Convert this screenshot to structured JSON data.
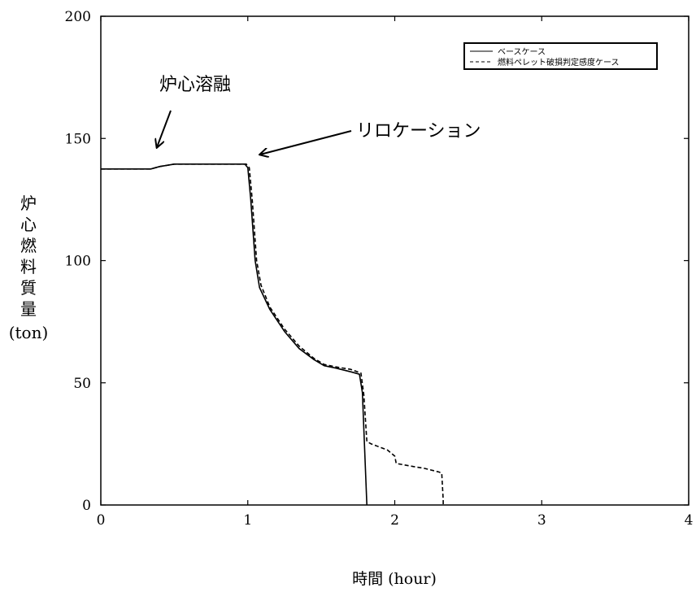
{
  "chart_data": {
    "type": "line",
    "title": "",
    "xlabel": "時間 (hour)",
    "ylabel": "炉心燃料質量",
    "ylabel_unit": "(ton)",
    "xlim": [
      0,
      4
    ],
    "ylim": [
      0,
      200
    ],
    "x_ticks": [
      0,
      1,
      2,
      3,
      4
    ],
    "y_ticks": [
      0,
      50,
      100,
      150,
      200
    ],
    "grid": false,
    "legend_position": "top-right",
    "series": [
      {
        "name": "ベースケース",
        "style": "solid",
        "color": "#000000",
        "points": [
          [
            0,
            137.5
          ],
          [
            0.34,
            137.5
          ],
          [
            0.4,
            138.5
          ],
          [
            0.5,
            139.5
          ],
          [
            0.98,
            139.5
          ],
          [
            1.0,
            138
          ],
          [
            1.02,
            125
          ],
          [
            1.05,
            100
          ],
          [
            1.08,
            89
          ],
          [
            1.15,
            80
          ],
          [
            1.25,
            71
          ],
          [
            1.35,
            64
          ],
          [
            1.45,
            59.5
          ],
          [
            1.52,
            57
          ],
          [
            1.6,
            56
          ],
          [
            1.7,
            54.5
          ],
          [
            1.76,
            53.5
          ],
          [
            1.78,
            46
          ],
          [
            1.8,
            15
          ],
          [
            1.81,
            0
          ]
        ]
      },
      {
        "name": "燃料ペレット破損判定感度ケース",
        "style": "dashed",
        "color": "#000000",
        "points": [
          [
            0,
            137.5
          ],
          [
            0.34,
            137.5
          ],
          [
            0.4,
            138.5
          ],
          [
            0.5,
            139.5
          ],
          [
            0.99,
            139.5
          ],
          [
            1.01,
            138
          ],
          [
            1.03,
            125
          ],
          [
            1.06,
            100
          ],
          [
            1.09,
            90
          ],
          [
            1.15,
            81
          ],
          [
            1.25,
            72
          ],
          [
            1.35,
            65
          ],
          [
            1.45,
            60
          ],
          [
            1.52,
            57.5
          ],
          [
            1.6,
            56.5
          ],
          [
            1.7,
            55.5
          ],
          [
            1.77,
            54
          ],
          [
            1.79,
            45
          ],
          [
            1.81,
            26
          ],
          [
            1.84,
            25
          ],
          [
            1.95,
            22.5
          ],
          [
            2.0,
            20
          ],
          [
            2.01,
            17
          ],
          [
            2.1,
            16
          ],
          [
            2.2,
            15
          ],
          [
            2.3,
            13.5
          ],
          [
            2.32,
            13
          ],
          [
            2.33,
            2
          ],
          [
            2.33,
            0
          ]
        ]
      }
    ],
    "annotations": [
      {
        "text": "炉心溶融",
        "target_x": 0.37,
        "target_y": 146
      },
      {
        "text": "リロケーション",
        "target_x": 1.1,
        "target_y": 143
      }
    ]
  }
}
